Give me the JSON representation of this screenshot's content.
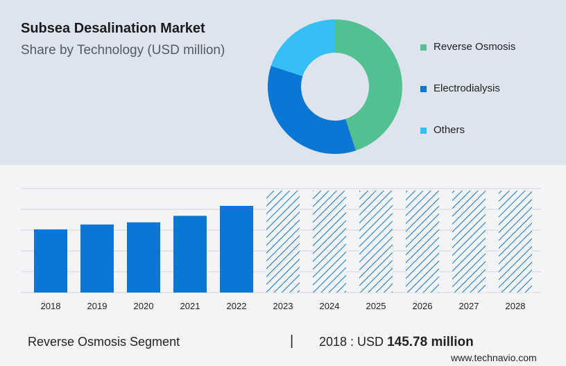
{
  "header": {
    "title": "Subsea Desalination Market",
    "subtitle": "Share by Technology (USD million)"
  },
  "colors": {
    "reverse_osmosis": "#52c090",
    "electrodialysis": "#0b76d4",
    "others": "#35bff5",
    "bar_solid": "#0b76d4",
    "bar_hatch": "#0b76d4"
  },
  "chart_data": [
    {
      "type": "pie",
      "variant": "donut",
      "labels": [
        "Reverse Osmosis",
        "Electrodialysis",
        "Others"
      ],
      "values": [
        45,
        35,
        20
      ],
      "legend_placement": "right"
    },
    {
      "type": "bar",
      "categories": [
        "2018",
        "2019",
        "2020",
        "2021",
        "2022",
        "2023",
        "2024",
        "2025",
        "2026",
        "2027",
        "2028"
      ],
      "values": [
        145.78,
        157,
        162,
        177,
        200,
        235,
        235,
        235,
        235,
        235,
        235
      ],
      "forecast_from": "2023",
      "forecast_style": "hatched",
      "ylim": [
        0,
        240
      ],
      "grid": true
    }
  ],
  "footer": {
    "segment": "Reverse Osmosis Segment",
    "divider": "|",
    "stat_prefix": "2018 : USD",
    "stat_value": "145.78 million",
    "url": "www.technavio.com"
  }
}
